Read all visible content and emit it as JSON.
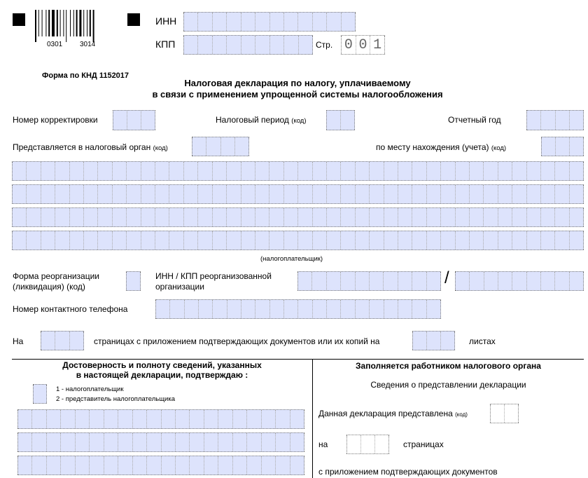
{
  "header": {
    "barcode_numbers": [
      "0301",
      "3014"
    ],
    "inn_label": "ИНН",
    "kpp_label": "КПП",
    "page_label": "Стр.",
    "page_digits": [
      "0",
      "0",
      "1"
    ]
  },
  "form_code": "Форма по КНД 1152017",
  "title": [
    "Налоговая декларация по налогу, уплачиваемому",
    "в связи с применением упрощенной системы налогообложения"
  ],
  "fields": {
    "correction_number": "Номер корректировки",
    "tax_period": "Налоговый период",
    "tax_period_code": "(код)",
    "report_year": "Отчетный год",
    "tax_authority": "Представляется в налоговый орган",
    "tax_authority_code": "(код)",
    "location": "по месту нахождения (учета)",
    "location_code": "(код)",
    "taxpayer_caption": "(налогоплательщик)",
    "reorg_form": [
      "Форма реорганизации",
      "(ликвидация) (код)"
    ],
    "reorg_inn_kpp": [
      "ИНН / КПП реорганизованной",
      "организации"
    ],
    "slash": "/",
    "phone": "Номер контактного телефона",
    "on": "На",
    "pages_text": "страницах с приложением подтверждающих документов или их копий на",
    "sheets": "листах"
  },
  "confirm": {
    "title": [
      "Достоверность и полноту сведений, указанных",
      "в настоящей декларации, подтверждаю :"
    ],
    "options": [
      "1 - налогоплательщик",
      "2 - представитель налогоплательщика"
    ]
  },
  "tax_office": {
    "title": "Заполняется работником налогового органа",
    "subtitle": "Сведения о представлении декларации",
    "submitted": "Данная декларация представлена",
    "submitted_code": "(код)",
    "on": "на",
    "pages": "страницах",
    "attachments": "с приложением подтверждающих документов"
  },
  "colors": {
    "field_fill": "#dde3fc"
  }
}
